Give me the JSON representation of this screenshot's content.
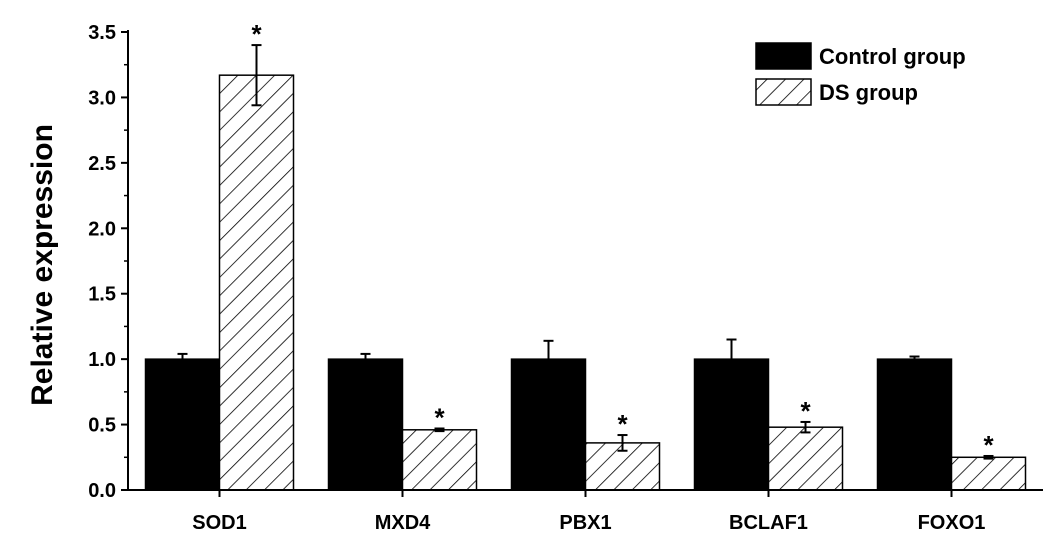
{
  "chart_data": {
    "type": "bar",
    "ylabel": "Relative expression",
    "ylim": [
      0,
      3.5
    ],
    "yticks": [
      "0.0",
      "0.5",
      "1.0",
      "1.5",
      "2.0",
      "2.5",
      "3.0",
      "3.5"
    ],
    "categories": [
      "SOD1",
      "MXD4",
      "PBX1",
      "BCLAF1",
      "FOXO1"
    ],
    "series": [
      {
        "name": "Control group",
        "values": [
          1.0,
          1.0,
          1.0,
          1.0,
          1.0
        ],
        "errors": [
          0.04,
          0.04,
          0.14,
          0.15,
          0.02
        ],
        "significance": [
          "",
          "",
          "",
          "",
          ""
        ],
        "style": "solid",
        "color": "#000000"
      },
      {
        "name": "DS group",
        "values": [
          3.17,
          0.46,
          0.36,
          0.48,
          0.25
        ],
        "errors": [
          0.23,
          0.01,
          0.06,
          0.04,
          0.01
        ],
        "significance": [
          "*",
          "*",
          "*",
          "*",
          "*"
        ],
        "style": "hatched",
        "color": "#000000"
      }
    ],
    "legend_position": "top-right",
    "grid": false
  }
}
